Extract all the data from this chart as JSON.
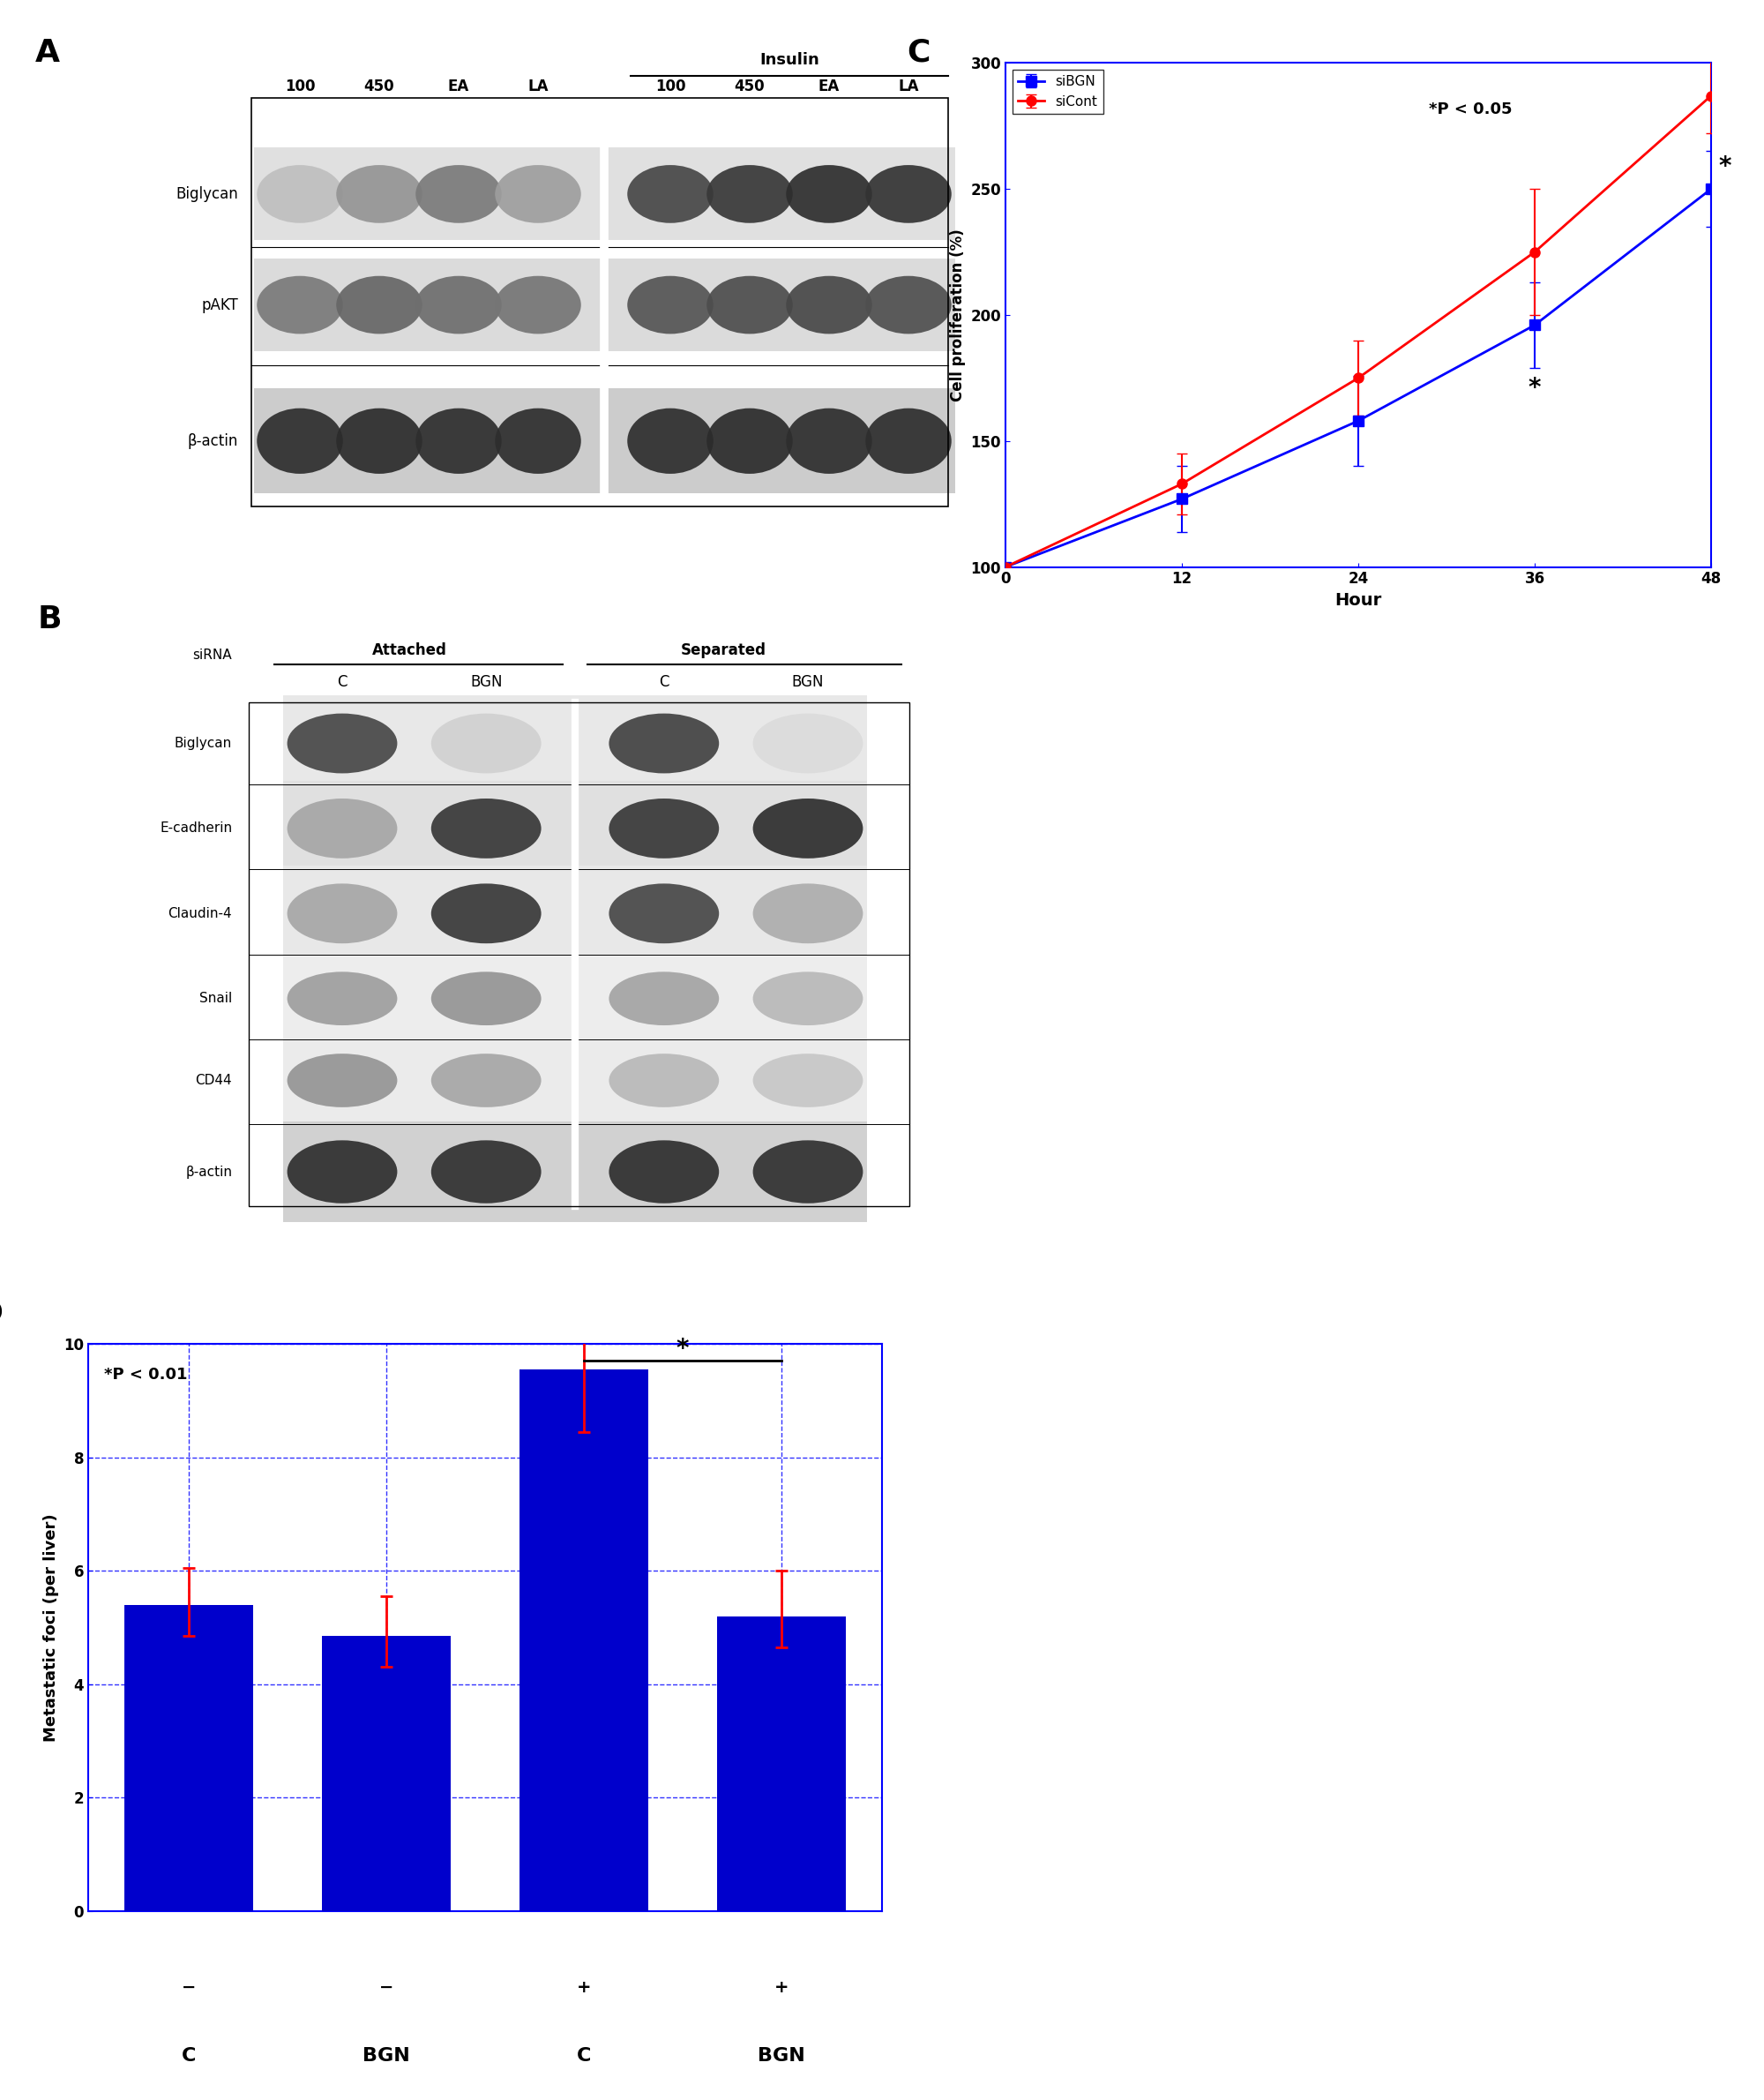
{
  "panel_labels": [
    "A",
    "B",
    "C",
    "D"
  ],
  "panel_label_fontsize": 26,
  "panel_label_fontweight": "bold",
  "panel_A": {
    "title": "Insulin",
    "col_labels_top": [
      "100",
      "450",
      "EA",
      "LA"
    ],
    "row_labels": [
      "Biglycan",
      "pAKT",
      "β-actin"
    ]
  },
  "panel_B": {
    "col_groups": [
      "Attached",
      "Separated"
    ],
    "col_sublabels": [
      "C",
      "BGN",
      "C",
      "BGN"
    ],
    "row_label": "siRNA",
    "row_labels": [
      "Biglycan",
      "E-cadherin",
      "Claudin-4",
      "Snail",
      "CD44",
      "β-actin"
    ]
  },
  "panel_C": {
    "xlabel": "Hour",
    "ylabel": "Cell proliferation (%)",
    "xlim": [
      0,
      48
    ],
    "ylim": [
      100,
      300
    ],
    "xticks": [
      0,
      12,
      24,
      36,
      48
    ],
    "yticks": [
      100,
      150,
      200,
      250,
      300
    ],
    "siBGN_x": [
      0,
      12,
      24,
      36,
      48
    ],
    "siBGN_y": [
      100,
      127,
      158,
      196,
      250
    ],
    "siBGN_yerr": [
      0,
      13,
      18,
      17,
      15
    ],
    "siCont_x": [
      0,
      12,
      24,
      36,
      48
    ],
    "siCont_y": [
      100,
      133,
      175,
      225,
      287
    ],
    "siCont_yerr": [
      0,
      12,
      15,
      25,
      15
    ],
    "siBGN_color": "#0000FF",
    "siCont_color": "#FF0000",
    "siBGN_label": "siBGN",
    "siCont_label": "siCont",
    "significance_text": "*P < 0.05"
  },
  "panel_D": {
    "msc_labels": [
      "−",
      "−",
      "+",
      "+"
    ],
    "sirna_labels": [
      "C",
      "BGN",
      "C",
      "BGN"
    ],
    "values": [
      5.4,
      4.85,
      9.55,
      5.2
    ],
    "errors_upper": [
      0.65,
      0.7,
      0.55,
      0.8
    ],
    "errors_lower": [
      0.55,
      0.55,
      1.1,
      0.55
    ],
    "bar_color": "#0000CC",
    "error_color": "#FF0000",
    "ylabel": "Metastatic foci (per liver)",
    "ylim": [
      0,
      10
    ],
    "yticks": [
      0,
      2,
      4,
      6,
      8,
      10
    ],
    "significance_text": "*P < 0.01",
    "grid_color": "#0000FF",
    "grid_style": "--"
  },
  "figure_bg": "#FFFFFF"
}
